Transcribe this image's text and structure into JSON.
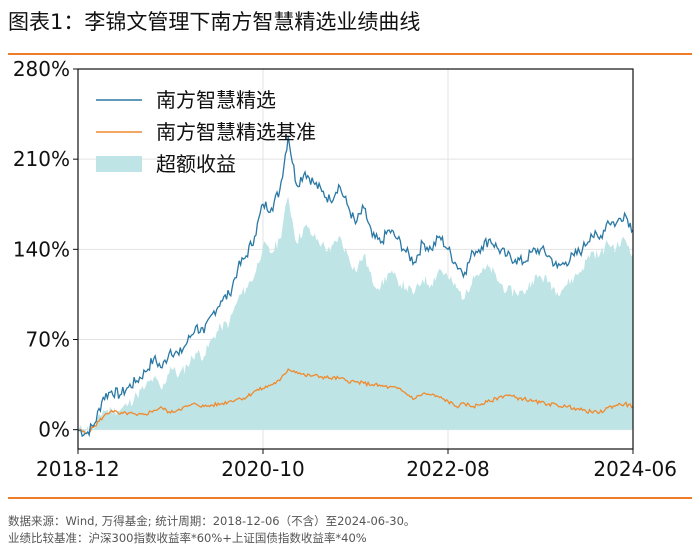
{
  "figure_title": "图表1：李锦文管理下南方智慧精选业绩曲线",
  "source_note": "数据来源：Wind, 万得基金; 统计周期：2018-12-06（不含）至2024-06-30。",
  "benchmark_note": "业绩比较基准：沪深300指数收益率*60%+上证国债指数收益率*40%",
  "colors": {
    "fund": "#2a78a4",
    "benchmark": "#ef8a2e",
    "excess": "#bfe4e6",
    "rule": "#ee7d2a"
  },
  "chart_data": {
    "type": "line",
    "title": "",
    "xlabel": "",
    "ylabel": "",
    "x_ticks": [
      "2018-12",
      "2020-10",
      "2022-08",
      "2024-06"
    ],
    "x_tick_positions": [
      0,
      22,
      44,
      66
    ],
    "y_ticks": [
      "0%",
      "70%",
      "140%",
      "210%",
      "280%"
    ],
    "y_tick_values": [
      0,
      70,
      140,
      210,
      280
    ],
    "ylim": [
      -15,
      280
    ],
    "xlim": [
      0,
      66
    ],
    "legend_position": "top-left",
    "series": [
      {
        "name": "南方智慧精选",
        "kind": "line",
        "x": [
          0,
          1,
          2,
          3,
          4,
          5,
          6,
          7,
          8,
          9,
          10,
          11,
          12,
          13,
          14,
          15,
          16,
          17,
          18,
          19,
          20,
          21,
          22,
          23,
          24,
          25,
          26,
          27,
          28,
          29,
          30,
          31,
          32,
          33,
          34,
          35,
          36,
          37,
          38,
          39,
          40,
          41,
          42,
          43,
          44,
          45,
          46,
          47,
          48,
          49,
          50,
          51,
          52,
          53,
          54,
          55,
          56,
          57,
          58,
          59,
          60,
          61,
          62,
          63,
          64,
          65,
          66
        ],
        "values": [
          0,
          -3,
          5,
          25,
          30,
          27,
          33,
          38,
          45,
          55,
          48,
          62,
          58,
          68,
          80,
          75,
          90,
          100,
          105,
          125,
          135,
          150,
          175,
          172,
          186,
          228,
          190,
          200,
          192,
          185,
          178,
          190,
          175,
          160,
          172,
          150,
          145,
          155,
          148,
          138,
          130,
          145,
          140,
          150,
          140,
          128,
          122,
          138,
          142,
          148,
          140,
          135,
          132,
          130,
          138,
          140,
          135,
          126,
          130,
          135,
          140,
          152,
          148,
          162,
          160,
          168,
          155
        ]
      },
      {
        "name": "南方智慧精选基准",
        "kind": "line",
        "x": [
          0,
          1,
          2,
          3,
          4,
          5,
          6,
          7,
          8,
          9,
          10,
          11,
          12,
          13,
          14,
          15,
          16,
          17,
          18,
          19,
          20,
          21,
          22,
          23,
          24,
          25,
          26,
          27,
          28,
          29,
          30,
          31,
          32,
          33,
          34,
          35,
          36,
          37,
          38,
          39,
          40,
          41,
          42,
          43,
          44,
          45,
          46,
          47,
          48,
          49,
          50,
          51,
          52,
          53,
          54,
          55,
          56,
          57,
          58,
          59,
          60,
          61,
          62,
          63,
          64,
          65,
          66
        ],
        "values": [
          0,
          -3,
          3,
          10,
          15,
          12,
          13,
          11,
          12,
          15,
          17,
          13,
          16,
          18,
          20,
          18,
          19,
          20,
          22,
          24,
          25,
          30,
          32,
          35,
          38,
          47,
          45,
          42,
          42,
          41,
          40,
          40,
          38,
          37,
          36,
          35,
          34,
          33,
          32,
          28,
          24,
          28,
          27,
          25,
          22,
          18,
          20,
          18,
          20,
          22,
          25,
          27,
          25,
          24,
          22,
          21,
          20,
          19,
          18,
          17,
          15,
          14,
          13,
          17,
          19,
          20,
          18
        ]
      },
      {
        "name": "超额收益",
        "kind": "area",
        "x": [
          0,
          1,
          2,
          3,
          4,
          5,
          6,
          7,
          8,
          9,
          10,
          11,
          12,
          13,
          14,
          15,
          16,
          17,
          18,
          19,
          20,
          21,
          22,
          23,
          24,
          25,
          26,
          27,
          28,
          29,
          30,
          31,
          32,
          33,
          34,
          35,
          36,
          37,
          38,
          39,
          40,
          41,
          42,
          43,
          44,
          45,
          46,
          47,
          48,
          49,
          50,
          51,
          52,
          53,
          54,
          55,
          56,
          57,
          58,
          59,
          60,
          61,
          62,
          63,
          64,
          65,
          66
        ],
        "values": [
          0,
          0,
          2,
          15,
          15,
          15,
          20,
          27,
          33,
          40,
          31,
          49,
          42,
          50,
          60,
          57,
          71,
          80,
          83,
          101,
          110,
          120,
          143,
          137,
          148,
          181,
          145,
          158,
          150,
          144,
          138,
          150,
          137,
          123,
          136,
          115,
          111,
          122,
          116,
          110,
          106,
          117,
          113,
          125,
          118,
          110,
          102,
          120,
          122,
          126,
          115,
          108,
          107,
          106,
          116,
          119,
          115,
          107,
          112,
          118,
          125,
          138,
          135,
          145,
          141,
          148,
          137
        ]
      }
    ]
  }
}
